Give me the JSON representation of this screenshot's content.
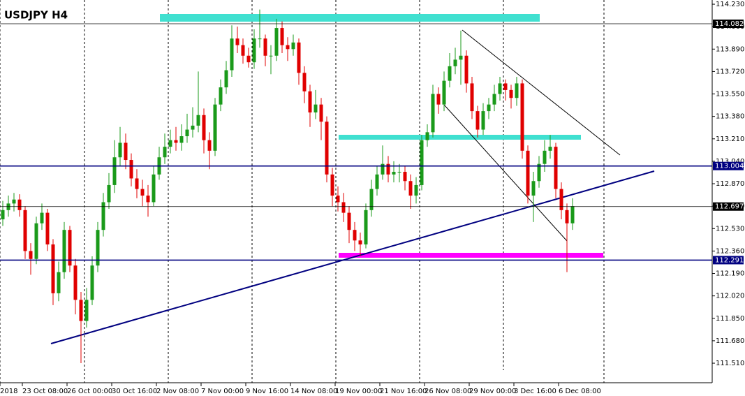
{
  "chart_data": {
    "type": "candlestick",
    "title": "USDJPY H4",
    "open": [
      112.6,
      112.67,
      112.72,
      112.75,
      112.67,
      112.36,
      112.3,
      112.57,
      112.65,
      112.41,
      112.04,
      112.2,
      112.52,
      112.25,
      111.99,
      111.83,
      111.99,
      112.25,
      112.52,
      112.73,
      112.86,
      113.07,
      113.18,
      113.05,
      112.91,
      112.83,
      112.78,
      112.73,
      112.94,
      113.07,
      113.15,
      113.2,
      113.18,
      113.23,
      113.28,
      113.31,
      113.39,
      113.2,
      113.12,
      113.47,
      113.6,
      113.73,
      113.97,
      113.92,
      113.84,
      113.79,
      113.97,
      113.97,
      113.84,
      113.84,
      114.05,
      113.92,
      113.89,
      113.94,
      113.71,
      113.57,
      113.41,
      113.47,
      113.34,
      112.94,
      112.78,
      112.73,
      112.65,
      112.52,
      112.44,
      112.41,
      112.67,
      112.83,
      112.94,
      113.02,
      112.94,
      112.96,
      112.96,
      112.89,
      112.78,
      112.86,
      113.2,
      113.26,
      113.55,
      113.47,
      113.65,
      113.76,
      113.81,
      113.84,
      113.63,
      113.42,
      113.28,
      113.42,
      113.47,
      113.55,
      113.63,
      113.58,
      113.52,
      113.63,
      113.12,
      112.78,
      112.89,
      113.02,
      113.12,
      113.15,
      112.83,
      112.67,
      112.57
    ],
    "high": [
      112.74,
      112.78,
      112.8,
      112.79,
      112.7,
      112.42,
      112.62,
      112.72,
      112.68,
      112.45,
      112.28,
      112.58,
      112.55,
      112.3,
      112.05,
      112.08,
      112.32,
      112.58,
      112.8,
      112.95,
      113.2,
      113.3,
      113.25,
      113.1,
      112.98,
      112.9,
      112.86,
      113.0,
      113.15,
      113.25,
      113.28,
      113.3,
      113.32,
      113.4,
      113.45,
      113.72,
      113.44,
      113.26,
      113.52,
      113.66,
      113.8,
      114.07,
      114.06,
      113.97,
      113.9,
      114.04,
      114.19,
      114.0,
      113.92,
      114.12,
      114.1,
      113.98,
      114.0,
      113.97,
      113.76,
      113.62,
      113.58,
      113.52,
      113.38,
      112.99,
      112.85,
      112.8,
      112.7,
      112.58,
      112.5,
      112.72,
      112.9,
      113.0,
      113.16,
      113.08,
      113.04,
      113.02,
      113.0,
      112.94,
      112.92,
      113.24,
      113.32,
      113.62,
      113.6,
      113.72,
      113.86,
      113.9,
      114.03,
      113.88,
      113.68,
      113.46,
      113.48,
      113.52,
      113.62,
      113.68,
      113.66,
      113.62,
      113.68,
      113.66,
      113.16,
      112.96,
      113.08,
      113.2,
      113.24,
      113.18,
      112.88,
      112.72,
      112.76
    ],
    "low": [
      112.55,
      112.62,
      112.66,
      112.62,
      112.3,
      112.18,
      112.26,
      112.52,
      112.36,
      111.95,
      111.98,
      112.15,
      112.2,
      111.88,
      111.51,
      111.78,
      111.95,
      112.2,
      112.47,
      112.68,
      112.8,
      113.0,
      112.98,
      112.85,
      112.76,
      112.7,
      112.62,
      112.7,
      112.9,
      113.02,
      113.1,
      113.12,
      113.12,
      113.18,
      113.22,
      113.26,
      113.1,
      112.98,
      113.08,
      113.42,
      113.55,
      113.68,
      113.86,
      113.78,
      113.75,
      113.74,
      113.9,
      113.76,
      113.7,
      113.8,
      113.86,
      113.8,
      113.84,
      113.62,
      113.48,
      113.3,
      113.36,
      113.2,
      112.88,
      112.7,
      112.66,
      112.58,
      112.42,
      112.36,
      112.32,
      112.38,
      112.62,
      112.78,
      112.9,
      112.88,
      112.88,
      112.88,
      112.82,
      112.68,
      112.72,
      112.82,
      113.15,
      113.22,
      113.4,
      113.42,
      113.6,
      113.7,
      113.62,
      113.56,
      113.36,
      113.22,
      113.24,
      113.36,
      113.42,
      113.5,
      113.5,
      113.44,
      113.46,
      113.06,
      112.72,
      112.58,
      112.84,
      112.96,
      113.06,
      112.76,
      112.6,
      112.2,
      112.52
    ],
    "close": [
      112.67,
      112.72,
      112.75,
      112.67,
      112.36,
      112.3,
      112.57,
      112.65,
      112.41,
      112.04,
      112.2,
      112.52,
      112.25,
      111.99,
      111.83,
      111.99,
      112.25,
      112.52,
      112.73,
      112.86,
      113.07,
      113.18,
      113.05,
      112.91,
      112.83,
      112.78,
      112.73,
      112.94,
      113.07,
      113.15,
      113.2,
      113.18,
      113.23,
      113.28,
      113.31,
      113.39,
      113.2,
      113.12,
      113.47,
      113.6,
      113.73,
      113.97,
      113.92,
      113.84,
      113.79,
      113.97,
      113.97,
      113.84,
      113.84,
      114.05,
      113.92,
      113.89,
      113.94,
      113.71,
      113.57,
      113.41,
      113.47,
      113.34,
      112.94,
      112.78,
      112.73,
      112.65,
      112.52,
      112.44,
      112.41,
      112.67,
      112.83,
      112.94,
      113.02,
      112.94,
      112.96,
      112.96,
      112.89,
      112.78,
      112.86,
      113.2,
      113.26,
      113.55,
      113.47,
      113.65,
      113.76,
      113.81,
      113.84,
      113.63,
      113.42,
      113.28,
      113.42,
      113.47,
      113.55,
      113.63,
      113.58,
      113.52,
      113.63,
      113.12,
      112.78,
      112.89,
      113.02,
      113.12,
      113.15,
      112.83,
      112.67,
      112.57,
      112.7
    ],
    "up_color": "#1a9a1a",
    "down_color": "#e00000",
    "ylim": [
      111.362,
      114.262
    ],
    "yticks": [
      {
        "value": 114.23,
        "label": "114.230"
      },
      {
        "value": 114.06,
        "label": "114.060"
      },
      {
        "value": 113.89,
        "label": "113.890"
      },
      {
        "value": 113.72,
        "label": "113.720"
      },
      {
        "value": 113.55,
        "label": "113.550"
      },
      {
        "value": 113.38,
        "label": "113.380"
      },
      {
        "value": 113.21,
        "label": "113.210"
      },
      {
        "value": 113.04,
        "label": "113.040"
      },
      {
        "value": 112.87,
        "label": "112.870"
      },
      {
        "value": 112.7,
        "label": "112.700"
      },
      {
        "value": 112.53,
        "label": "112.530"
      },
      {
        "value": 112.36,
        "label": "112.360"
      },
      {
        "value": 112.19,
        "label": "112.190"
      },
      {
        "value": 112.02,
        "label": "112.020"
      },
      {
        "value": 111.85,
        "label": "111.850"
      },
      {
        "value": 111.68,
        "label": "111.680"
      },
      {
        "value": 111.51,
        "label": "111.510"
      }
    ],
    "xticks": [
      {
        "value": -0.5,
        "label": "2018"
      },
      {
        "value": 3.5,
        "label": "23 Oct 08:00"
      },
      {
        "value": 11.5,
        "label": "26 Oct 00:00"
      },
      {
        "value": 19.5,
        "label": "30 Oct 16:00"
      },
      {
        "value": 27.5,
        "label": "2 Nov 08:00"
      },
      {
        "value": 35.5,
        "label": "7 Nov 00:00"
      },
      {
        "value": 43.5,
        "label": "9 Nov 16:00"
      },
      {
        "value": 51.5,
        "label": "14 Nov 08:00"
      },
      {
        "value": 59.5,
        "label": "19 Nov 00:00"
      },
      {
        "value": 67.5,
        "label": "21 Nov 16:00"
      },
      {
        "value": 75.5,
        "label": "26 Nov 08:00"
      },
      {
        "value": 83.5,
        "label": "29 Nov 00:00"
      },
      {
        "value": 91.5,
        "label": "3 Dec 16:00"
      },
      {
        "value": 99.5,
        "label": "6 Dec 08:00"
      }
    ],
    "levels": [
      {
        "value": 114.082,
        "color": "#000000"
      },
      {
        "value": 113.004,
        "color": "#000080"
      },
      {
        "value": 112.697,
        "color": "#000000"
      },
      {
        "value": 112.291,
        "color": "#000080"
      }
    ]
  }
}
